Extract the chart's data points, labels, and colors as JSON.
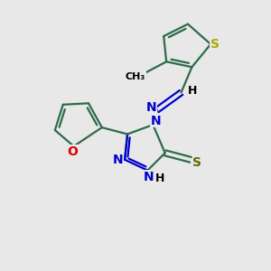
{
  "bg_color": "#e8e8e8",
  "bond_color": "#2d6b4a",
  "bond_width": 1.6,
  "N_color": "#0000cc",
  "O_color": "#dd0000",
  "S_thio_color": "#aaaa00",
  "S_thione_color": "#666600",
  "text_color": "#000000",
  "font_size": 9,
  "figsize": [
    3.0,
    3.0
  ],
  "dpi": 100,
  "xlim": [
    0,
    10
  ],
  "ylim": [
    0,
    10
  ]
}
